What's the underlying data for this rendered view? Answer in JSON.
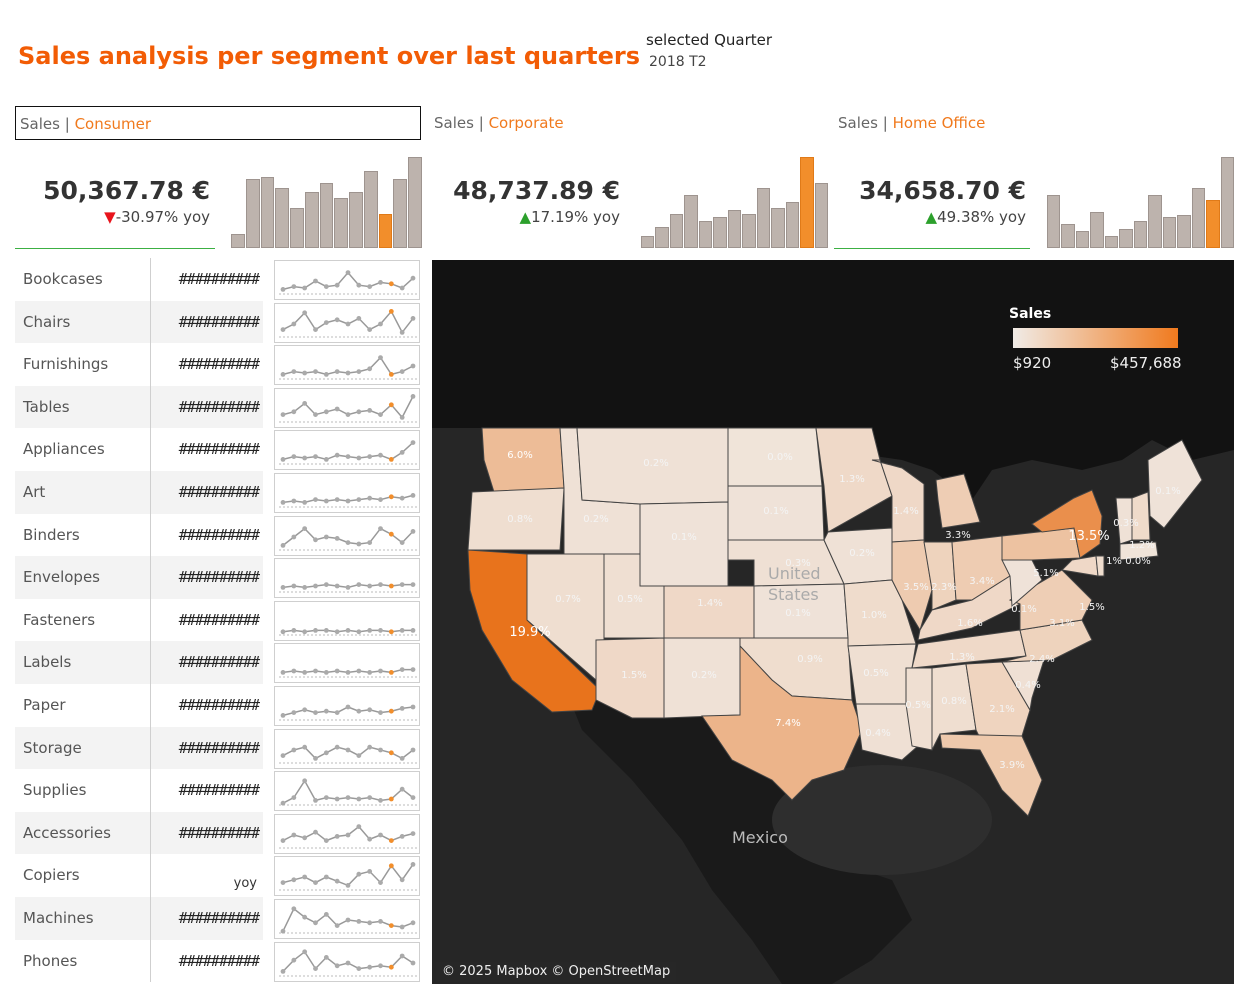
{
  "title": "Sales analysis per segment over last quarters",
  "quarter": {
    "label": "selected Quarter",
    "value": "2018 T2"
  },
  "segments": [
    {
      "prefix": "Sales",
      "sep": "|",
      "name": "Consumer",
      "value": "50,367.78 €",
      "arrow": "▼",
      "yoy": "-30.97% yoy",
      "selected": true,
      "bars": [
        0.15,
        0.72,
        0.74,
        0.62,
        0.42,
        0.58,
        0.68,
        0.52,
        0.58,
        0.8,
        0.35,
        0.72,
        0.95
      ],
      "highlight": 10
    },
    {
      "prefix": "Sales",
      "sep": "|",
      "name": "Corporate",
      "value": "48,737.89 €",
      "arrow": "▲",
      "yoy": "17.19% yoy",
      "selected": false,
      "bars": [
        0.12,
        0.22,
        0.35,
        0.55,
        0.28,
        0.32,
        0.4,
        0.35,
        0.62,
        0.42,
        0.48,
        0.95,
        0.68
      ],
      "highlight": 11
    },
    {
      "prefix": "Sales",
      "sep": "|",
      "name": "Home Office",
      "value": "34,658.70 €",
      "arrow": "▲",
      "yoy": "49.38% yoy",
      "selected": false,
      "bars": [
        0.55,
        0.25,
        0.18,
        0.38,
        0.12,
        0.2,
        0.28,
        0.55,
        0.32,
        0.34,
        0.62,
        0.5,
        0.95
      ],
      "highlight": 11
    }
  ],
  "subcategories": [
    {
      "name": "Bookcases",
      "value": "##########"
    },
    {
      "name": "Chairs",
      "value": "##########"
    },
    {
      "name": "Furnishings",
      "value": "##########"
    },
    {
      "name": "Tables",
      "value": "##########"
    },
    {
      "name": "Appliances",
      "value": "##########"
    },
    {
      "name": "Art",
      "value": "##########"
    },
    {
      "name": "Binders",
      "value": "##########"
    },
    {
      "name": "Envelopes",
      "value": "##########"
    },
    {
      "name": "Fasteners",
      "value": "##########"
    },
    {
      "name": "Labels",
      "value": "##########"
    },
    {
      "name": "Paper",
      "value": "##########"
    },
    {
      "name": "Storage",
      "value": "##########"
    },
    {
      "name": "Supplies",
      "value": "##########"
    },
    {
      "name": "Accessories",
      "value": "##########"
    },
    {
      "name": "Copiers",
      "value": "",
      "note": "yoy"
    },
    {
      "name": "Machines",
      "value": "##########"
    },
    {
      "name": "Phones",
      "value": "##########"
    }
  ],
  "sparks": [
    [
      0.2,
      0.3,
      0.25,
      0.5,
      0.3,
      0.35,
      0.8,
      0.35,
      0.3,
      0.45,
      0.4,
      0.25,
      0.6
    ],
    [
      0.3,
      0.5,
      0.9,
      0.3,
      0.55,
      0.65,
      0.5,
      0.7,
      0.3,
      0.5,
      0.95,
      0.2,
      0.7
    ],
    [
      0.2,
      0.3,
      0.25,
      0.3,
      0.2,
      0.3,
      0.25,
      0.3,
      0.4,
      0.8,
      0.2,
      0.3,
      0.5
    ],
    [
      0.3,
      0.4,
      0.7,
      0.3,
      0.4,
      0.5,
      0.3,
      0.4,
      0.45,
      0.3,
      0.65,
      0.2,
      0.95
    ],
    [
      0.2,
      0.3,
      0.25,
      0.3,
      0.2,
      0.35,
      0.3,
      0.25,
      0.3,
      0.35,
      0.2,
      0.45,
      0.8
    ],
    [
      0.2,
      0.25,
      0.2,
      0.3,
      0.25,
      0.3,
      0.25,
      0.3,
      0.35,
      0.3,
      0.4,
      0.35,
      0.45
    ],
    [
      0.2,
      0.5,
      0.8,
      0.4,
      0.5,
      0.45,
      0.3,
      0.25,
      0.3,
      0.8,
      0.6,
      0.3,
      0.7
    ],
    [
      0.2,
      0.25,
      0.2,
      0.25,
      0.3,
      0.25,
      0.2,
      0.3,
      0.25,
      0.3,
      0.25,
      0.3,
      0.3
    ],
    [
      0.15,
      0.2,
      0.15,
      0.2,
      0.2,
      0.15,
      0.2,
      0.15,
      0.2,
      0.2,
      0.15,
      0.2,
      0.2
    ],
    [
      0.2,
      0.25,
      0.2,
      0.25,
      0.2,
      0.25,
      0.2,
      0.25,
      0.2,
      0.25,
      0.2,
      0.3,
      0.3
    ],
    [
      0.2,
      0.3,
      0.4,
      0.3,
      0.35,
      0.3,
      0.5,
      0.35,
      0.4,
      0.3,
      0.35,
      0.45,
      0.5
    ],
    [
      0.3,
      0.5,
      0.6,
      0.2,
      0.4,
      0.6,
      0.5,
      0.3,
      0.6,
      0.5,
      0.4,
      0.2,
      0.5
    ],
    [
      0.1,
      0.3,
      0.9,
      0.2,
      0.3,
      0.25,
      0.3,
      0.25,
      0.3,
      0.2,
      0.25,
      0.6,
      0.3
    ],
    [
      0.3,
      0.5,
      0.4,
      0.6,
      0.3,
      0.45,
      0.5,
      0.8,
      0.35,
      0.5,
      0.3,
      0.45,
      0.55
    ],
    [
      0.3,
      0.4,
      0.5,
      0.3,
      0.5,
      0.35,
      0.2,
      0.6,
      0.7,
      0.3,
      0.9,
      0.4,
      0.95
    ],
    [
      0.1,
      0.9,
      0.6,
      0.4,
      0.7,
      0.3,
      0.5,
      0.45,
      0.4,
      0.45,
      0.3,
      0.25,
      0.4
    ],
    [
      0.2,
      0.6,
      0.9,
      0.3,
      0.7,
      0.4,
      0.5,
      0.3,
      0.35,
      0.4,
      0.35,
      0.75,
      0.5
    ]
  ],
  "map": {
    "legend": {
      "title": "Sales",
      "min": "$920",
      "max": "$457,688"
    },
    "attribution": "© 2025 Mapbox © OpenStreetMap",
    "places": {
      "us": "United States",
      "mexico": "Mexico"
    },
    "states": [
      {
        "id": "WA",
        "label": "6.0%",
        "share": 0.35
      },
      {
        "id": "OR",
        "label": "0.8%",
        "share": 0.05
      },
      {
        "id": "CA",
        "label": "19.9%",
        "share": 1.0
      },
      {
        "id": "NV",
        "label": "0.7%",
        "share": 0.05
      },
      {
        "id": "ID",
        "label": "0.2%",
        "share": 0.02
      },
      {
        "id": "MT",
        "label": "0.2%",
        "share": 0.02
      },
      {
        "id": "WY",
        "label": "0.1%",
        "share": 0.01
      },
      {
        "id": "UT",
        "label": "0.5%",
        "share": 0.04
      },
      {
        "id": "AZ",
        "label": "1.5%",
        "share": 0.1
      },
      {
        "id": "CO",
        "label": "1.4%",
        "share": 0.1
      },
      {
        "id": "NM",
        "label": "0.2%",
        "share": 0.02
      },
      {
        "id": "ND",
        "label": "0.0%",
        "share": 0.0
      },
      {
        "id": "SD",
        "label": "0.1%",
        "share": 0.01
      },
      {
        "id": "NE",
        "label": "0.3%",
        "share": 0.03
      },
      {
        "id": "KS",
        "label": "0.1%",
        "share": 0.01
      },
      {
        "id": "OK",
        "label": "0.9%",
        "share": 0.06
      },
      {
        "id": "TX",
        "label": "7.4%",
        "share": 0.42
      },
      {
        "id": "MN",
        "label": "1.3%",
        "share": 0.09
      },
      {
        "id": "IA",
        "label": "0.2%",
        "share": 0.02
      },
      {
        "id": "MO",
        "label": "1.0%",
        "share": 0.07
      },
      {
        "id": "AR",
        "label": "0.5%",
        "share": 0.04
      },
      {
        "id": "LA",
        "label": "0.4%",
        "share": 0.03
      },
      {
        "id": "WI",
        "label": "1.4%",
        "share": 0.1
      },
      {
        "id": "IL",
        "label": "3.5%",
        "share": 0.22
      },
      {
        "id": "MI",
        "label": "3.3%",
        "share": 0.2
      },
      {
        "id": "IN",
        "label": "2.3%",
        "share": 0.15
      },
      {
        "id": "OH",
        "label": "3.4%",
        "share": 0.21
      },
      {
        "id": "KY",
        "label": "1.6%",
        "share": 0.1
      },
      {
        "id": "TN",
        "label": "1.3%",
        "share": 0.09
      },
      {
        "id": "MS",
        "label": "0.5%",
        "share": 0.04
      },
      {
        "id": "AL",
        "label": "0.8%",
        "share": 0.05
      },
      {
        "id": "GA",
        "label": "2.1%",
        "share": 0.14
      },
      {
        "id": "FL",
        "label": "3.9%",
        "share": 0.24
      },
      {
        "id": "SC",
        "label": "0.4%",
        "share": 0.03
      },
      {
        "id": "NC",
        "label": "2.4%",
        "share": 0.15
      },
      {
        "id": "VA",
        "label": "3.1%",
        "share": 0.19
      },
      {
        "id": "WV",
        "label": "0.1%",
        "share": 0.01
      },
      {
        "id": "PA",
        "label": "5.1%",
        "share": 0.3
      },
      {
        "id": "NY",
        "label": "13.5%",
        "share": 0.75
      },
      {
        "id": "VT",
        "label": "0.3%",
        "share": 0.02
      },
      {
        "id": "NH",
        "label": "1.2%",
        "share": 0.08
      },
      {
        "id": "ME",
        "label": "0.1%",
        "share": 0.01
      },
      {
        "id": "MA",
        "label": "0.0%",
        "share": 0.0
      },
      {
        "id": "MD",
        "label": "1.5%",
        "share": 0.1
      },
      {
        "id": "DE",
        "label": "1%",
        "share": 0.06
      }
    ]
  }
}
